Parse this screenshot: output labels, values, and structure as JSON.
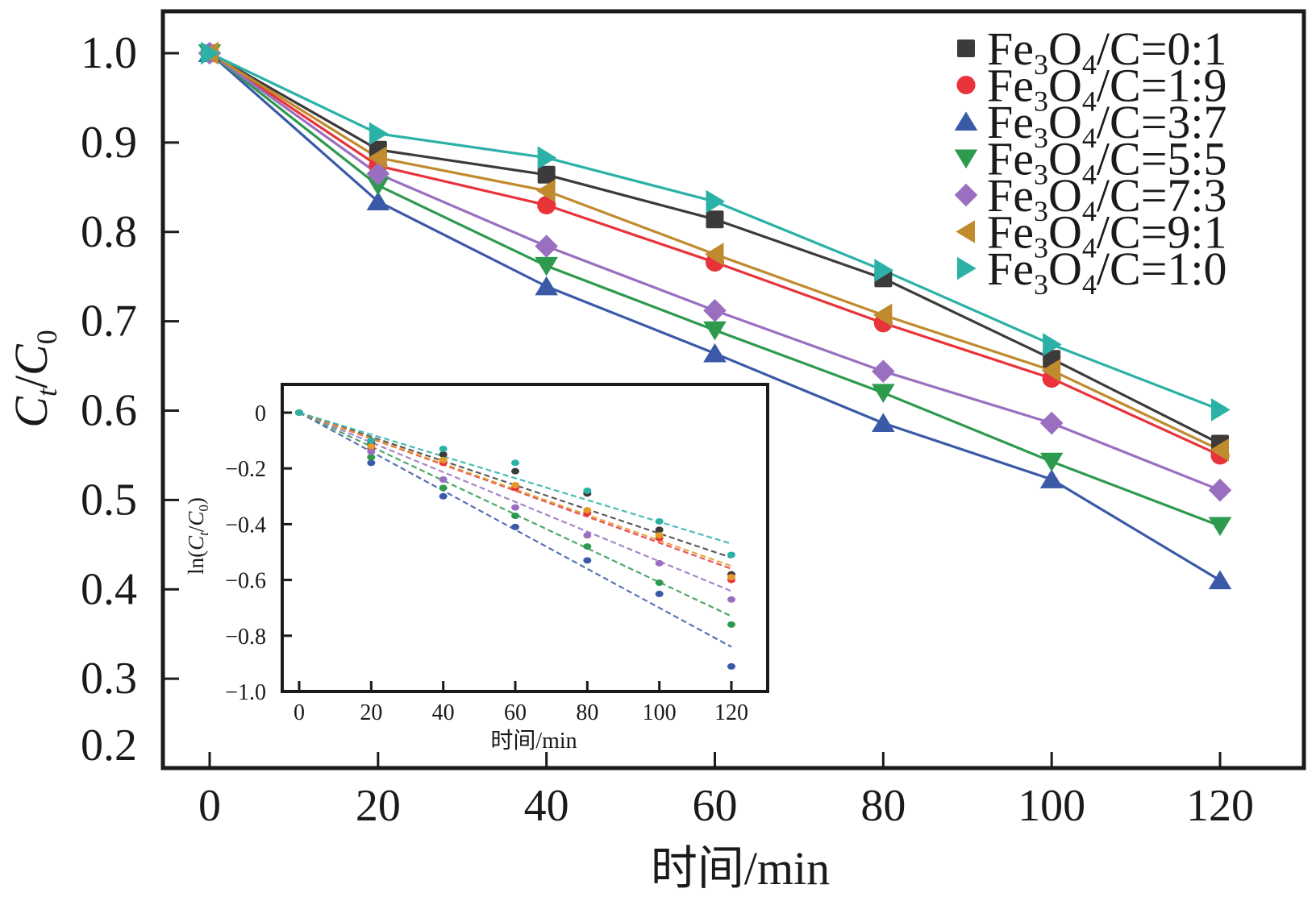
{
  "chart_data": [
    {
      "id": "main",
      "type": "line",
      "title": "",
      "xlabel": "时间/min",
      "ylabel": "Ct/C0",
      "ylabel_parts": {
        "base1": "C",
        "sub1": "t",
        "slash": "/",
        "base2": "C",
        "sub2": "0"
      },
      "xlim": [
        -3,
        133
      ],
      "ylim": [
        0.2,
        1.05
      ],
      "x_ticks": [
        0,
        20,
        40,
        60,
        80,
        100,
        120
      ],
      "x_tick_labels": [
        "0",
        "20",
        "40",
        "60",
        "80",
        "100",
        "120"
      ],
      "y_ticks": [
        0.2,
        0.3,
        0.4,
        0.5,
        0.6,
        0.7,
        0.8,
        0.9,
        1.0
      ],
      "y_tick_labels": [
        "0.2",
        "0.3",
        "0.4",
        "0.5",
        "0.6",
        "0.7",
        "0.8",
        "0.9",
        "1.0"
      ],
      "grid": false,
      "legend_position": "top-right",
      "x": [
        0,
        20,
        40,
        60,
        80,
        100,
        120
      ],
      "series": [
        {
          "name": "Fe3O4/C=0:1",
          "ratio": "0:1",
          "color": "#3d3a3a",
          "marker": "square",
          "values": [
            1.0,
            0.892,
            0.864,
            0.814,
            0.748,
            0.658,
            0.563
          ]
        },
        {
          "name": "Fe3O4/C=1:9",
          "ratio": "1:9",
          "color": "#e8333a",
          "marker": "circle",
          "values": [
            1.0,
            0.874,
            0.83,
            0.766,
            0.698,
            0.636,
            0.55
          ]
        },
        {
          "name": "Fe3O4/C=3:7",
          "ratio": "3:7",
          "color": "#3a5aa8",
          "marker": "triangle-up",
          "values": [
            1.0,
            0.834,
            0.739,
            0.664,
            0.586,
            0.523,
            0.41
          ]
        },
        {
          "name": "Fe3O4/C=5:5",
          "ratio": "5:5",
          "color": "#2e9a4e",
          "marker": "triangle-down",
          "values": [
            1.0,
            0.852,
            0.762,
            0.69,
            0.62,
            0.543,
            0.471
          ]
        },
        {
          "name": "Fe3O4/C=7:3",
          "ratio": "7:3",
          "color": "#9a6fc0",
          "marker": "diamond",
          "values": [
            1.0,
            0.865,
            0.784,
            0.712,
            0.644,
            0.586,
            0.511
          ]
        },
        {
          "name": "Fe3O4/C=9:1",
          "ratio": "9:1",
          "color": "#c08a2e",
          "marker": "triangle-left",
          "values": [
            1.0,
            0.883,
            0.846,
            0.775,
            0.707,
            0.645,
            0.556
          ]
        },
        {
          "name": "Fe3O4/C=1:0",
          "ratio": "1:0",
          "color": "#2bb1a6",
          "marker": "triangle-right",
          "values": [
            1.0,
            0.91,
            0.883,
            0.834,
            0.757,
            0.674,
            0.601
          ]
        }
      ],
      "legend_entries": [
        {
          "prefix": "Fe",
          "sub1": "3",
          "mid": "O",
          "sub2": "4",
          "suffix": "/C=0:1"
        },
        {
          "prefix": "Fe",
          "sub1": "3",
          "mid": "O",
          "sub2": "4",
          "suffix": "/C=1:9"
        },
        {
          "prefix": "Fe",
          "sub1": "3",
          "mid": "O",
          "sub2": "4",
          "suffix": "/C=3:7"
        },
        {
          "prefix": "Fe",
          "sub1": "3",
          "mid": "O",
          "sub2": "4",
          "suffix": "/C=5:5"
        },
        {
          "prefix": "Fe",
          "sub1": "3",
          "mid": "O",
          "sub2": "4",
          "suffix": "/C=7:3"
        },
        {
          "prefix": "Fe",
          "sub1": "3",
          "mid": "O",
          "sub2": "4",
          "suffix": "/C=9:1"
        },
        {
          "prefix": "Fe",
          "sub1": "3",
          "mid": "O",
          "sub2": "4",
          "suffix": "/C=1:0"
        }
      ]
    },
    {
      "id": "inset",
      "type": "scatter",
      "title": "",
      "xlabel": "时间/min",
      "ylabel": "ln(Ct/C0)",
      "ylabel_parts": {
        "pre": "ln(",
        "base1": "C",
        "sub1": "t",
        "slash": "/",
        "base2": "C",
        "sub2": "0",
        "post": ")"
      },
      "xlim": [
        -5,
        132
      ],
      "ylim": [
        -1.0,
        0.1
      ],
      "x_ticks": [
        0,
        20,
        40,
        60,
        80,
        100,
        120
      ],
      "x_tick_labels": [
        "0",
        "20",
        "40",
        "60",
        "80",
        "100",
        "120"
      ],
      "y_ticks": [
        0,
        -0.2,
        -0.4,
        -0.6,
        -0.8,
        -1.0
      ],
      "y_tick_labels": [
        "0",
        "−0.2",
        "−0.4",
        "−0.6",
        "−0.8",
        "−1.0"
      ],
      "grid": false,
      "x": [
        0,
        20,
        40,
        60,
        80,
        100,
        120
      ],
      "series": [
        {
          "name": "Fe3O4/C=0:1",
          "color": "#3d3a3a",
          "values": [
            0,
            -0.11,
            -0.15,
            -0.21,
            -0.29,
            -0.42,
            -0.58
          ],
          "fit_end": -0.52
        },
        {
          "name": "Fe3O4/C=1:9",
          "color": "#e8333a",
          "values": [
            0,
            -0.13,
            -0.18,
            -0.27,
            -0.36,
            -0.45,
            -0.6
          ],
          "fit_end": -0.56
        },
        {
          "name": "Fe3O4/C=3:7",
          "color": "#3a5aa8",
          "values": [
            0,
            -0.18,
            -0.3,
            -0.41,
            -0.53,
            -0.65,
            -0.91
          ],
          "fit_end": -0.84
        },
        {
          "name": "Fe3O4/C=5:5",
          "color": "#2e9a4e",
          "values": [
            0,
            -0.16,
            -0.27,
            -0.37,
            -0.48,
            -0.61,
            -0.76
          ],
          "fit_end": -0.73
        },
        {
          "name": "Fe3O4/C=7:3",
          "color": "#9a6fc0",
          "values": [
            0,
            -0.14,
            -0.24,
            -0.34,
            -0.44,
            -0.54,
            -0.67
          ],
          "fit_end": -0.64
        },
        {
          "name": "Fe3O4/C=9:1",
          "color": "#e39a2a",
          "values": [
            0,
            -0.12,
            -0.17,
            -0.26,
            -0.35,
            -0.44,
            -0.59
          ],
          "fit_end": -0.55
        },
        {
          "name": "Fe3O4/C=1:0",
          "color": "#2bb1a6",
          "values": [
            0,
            -0.1,
            -0.13,
            -0.18,
            -0.28,
            -0.39,
            -0.51
          ],
          "fit_end": -0.47
        }
      ]
    }
  ]
}
